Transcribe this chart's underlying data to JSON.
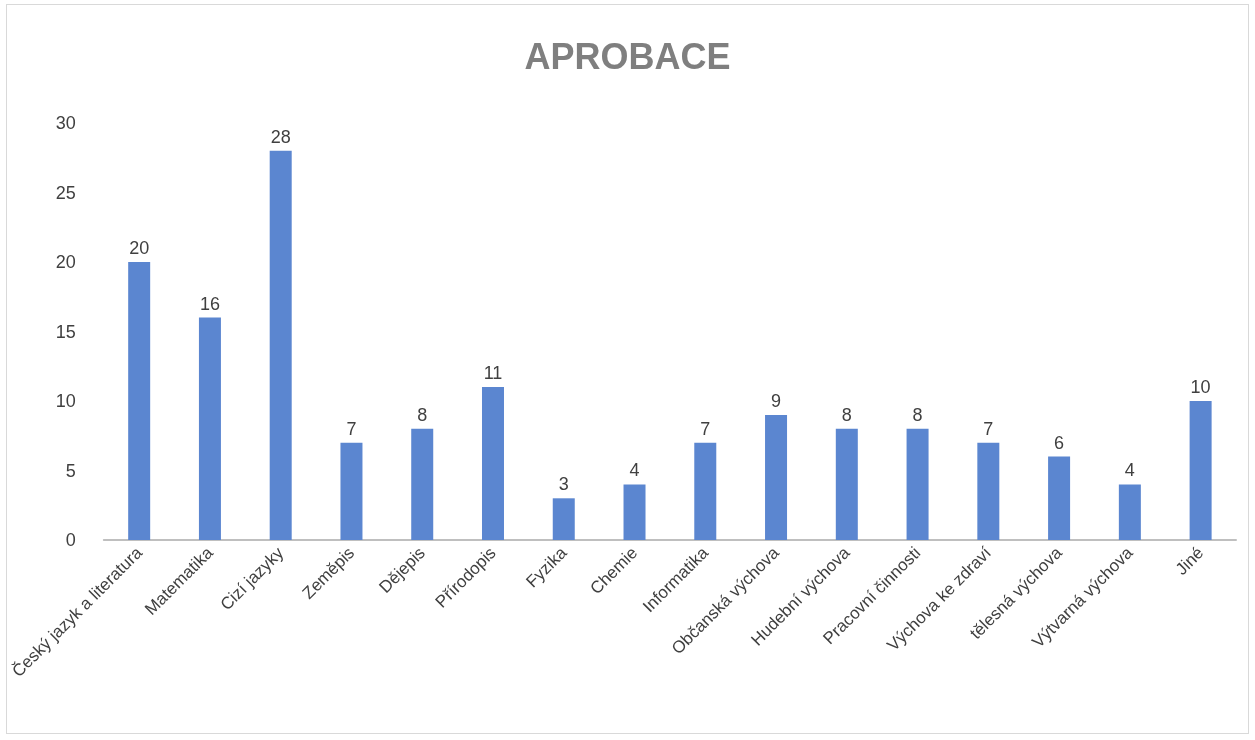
{
  "chart_data": {
    "type": "bar",
    "title": "APROBACE",
    "categories": [
      "Český jazyk a literatura",
      "Matematika",
      "Cizí jazyky",
      "Zeměpis",
      "Dějepis",
      "Přírodopis",
      "Fyzika",
      "Chemie",
      "Informatika",
      "Občanská výchova",
      "Hudební výchova",
      "Pracovní činnosti",
      "Výchova ke zdraví",
      "tělesná výchova",
      "Výtvarná výchova",
      "Jiné"
    ],
    "values": [
      20,
      16,
      28,
      7,
      8,
      11,
      3,
      4,
      7,
      9,
      8,
      8,
      7,
      6,
      4,
      10
    ],
    "color": "#5b86d0",
    "ylim": [
      0,
      30
    ],
    "yticks": [
      0,
      5,
      10,
      15,
      20,
      25,
      30
    ],
    "grid": false,
    "data_labels": true
  }
}
